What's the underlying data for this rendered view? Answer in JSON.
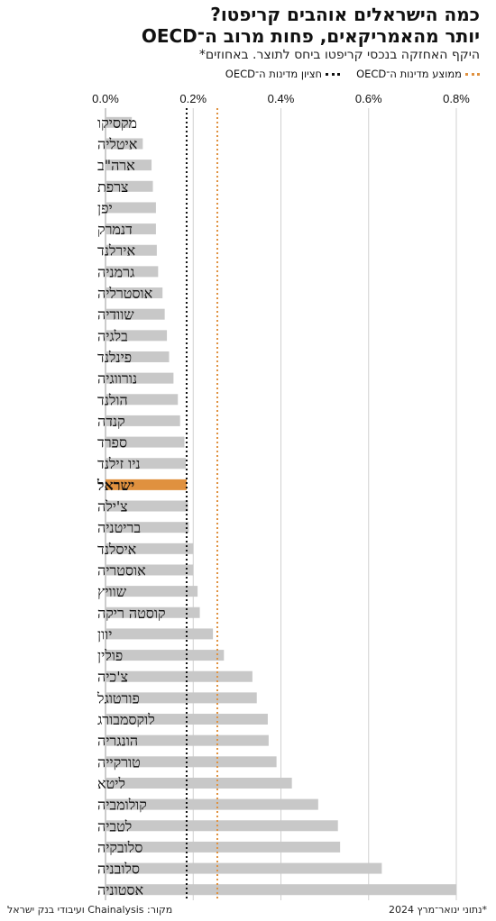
{
  "header": {
    "title_line1": "כמה הישראלים אוהבים קריפטו?",
    "title_line2": "יותר מהאמריקאים, פחות מרוב ה־OECD",
    "subtitle": "היקף האחזקה בנכסי קריפטו ביחס לתוצר. באחוזים*"
  },
  "legend": {
    "mean_label": "ממוצע מדינות ה־OECD",
    "median_label": "חציון מדינות ה־OECD"
  },
  "footer": {
    "note": "*נתוני ינואר־מרץ 2024",
    "source": "מקור: Chainalysis ועיבודי בנק ישראל"
  },
  "colors": {
    "bar": "#c8c8c8",
    "highlight": "#e0913f",
    "mean_line": "#e0913f",
    "median_line": "#111111",
    "grid": "#d0d0d0"
  },
  "chart_data": {
    "type": "bar",
    "orientation": "horizontal",
    "xlim": [
      0,
      0.8
    ],
    "x_ticks": [
      "0.0%",
      "0.2%",
      "0.4%",
      "0.6%",
      "0.8%"
    ],
    "highlight": "ישראל",
    "grid": true,
    "categories": [
      "מקסיקו",
      "איטליה",
      "ארה\"ב",
      "צרפת",
      "יפן",
      "דנמרק",
      "אירלנד",
      "גרמניה",
      "אוסטרליה",
      "שוודיה",
      "בלגיה",
      "פינלנד",
      "נורווגיה",
      "הולנד",
      "קנדה",
      "ספרד",
      "ניו זילנד",
      "ישראל",
      "צ'ילה",
      "בריטניה",
      "איסלנד",
      "אוסטריה",
      "שוויץ",
      "קוסטה ריקה",
      "יוון",
      "פולין",
      "צ'כיה",
      "פורטוגל",
      "לוקסמבורג",
      "הונגריה",
      "טורקייה",
      "ליטא",
      "קולומביה",
      "לטביה",
      "סלובקיה",
      "סלובניה",
      "אסטוניה"
    ],
    "values": [
      0.06,
      0.085,
      0.105,
      0.108,
      0.115,
      0.115,
      0.117,
      0.12,
      0.13,
      0.135,
      0.14,
      0.145,
      0.155,
      0.165,
      0.17,
      0.18,
      0.183,
      0.185,
      0.188,
      0.19,
      0.2,
      0.2,
      0.21,
      0.215,
      0.245,
      0.27,
      0.335,
      0.345,
      0.37,
      0.372,
      0.39,
      0.425,
      0.485,
      0.53,
      0.535,
      0.63,
      0.8
    ],
    "oecd_median": 0.185,
    "oecd_mean": 0.255
  }
}
